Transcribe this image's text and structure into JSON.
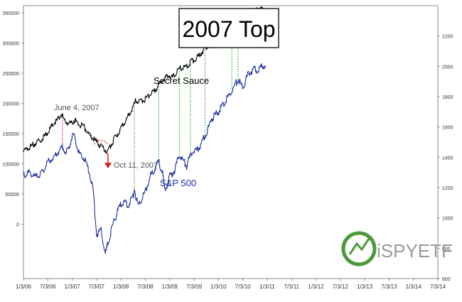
{
  "chart_data": {
    "type": "line",
    "title": "2007 Top",
    "x_tick_labels": [
      "1/3/06",
      "7/3/06",
      "1/3/07",
      "7/3/07",
      "1/3/08",
      "7/3/08",
      "1/3/09",
      "7/3/09",
      "1/3/10",
      "7/3/10",
      "1/3/11",
      "7/3/11",
      "1/3/12",
      "7/3/12",
      "1/3/13",
      "7/3/13",
      "1/3/14",
      "7/3/14"
    ],
    "left_axis": {
      "ylim": [
        -90000,
        362000
      ],
      "ticks": [
        0,
        50000,
        100000,
        150000,
        200000,
        250000,
        300000,
        350000
      ],
      "tick_labels": [
        "0",
        "50000",
        "100000",
        "150000",
        "200000",
        "250000",
        "300000",
        "350000"
      ]
    },
    "right_axis": {
      "ylim": [
        600,
        2400
      ],
      "ticks": [
        600,
        800,
        1000,
        1200,
        1400,
        1600,
        1800,
        2000,
        2200
      ],
      "tick_labels": [
        "600",
        "800",
        "1000",
        "1200",
        "1400",
        "1600",
        "1800",
        "2000",
        "2200"
      ]
    },
    "grid": false,
    "legend": "none",
    "series": [
      {
        "name": "Secret Sauce",
        "axis": "left",
        "color": "#000000",
        "points": [
          [
            0.0,
            118000
          ],
          [
            0.25,
            125000
          ],
          [
            0.5,
            132000
          ],
          [
            0.75,
            138000
          ],
          [
            1.0,
            150000
          ],
          [
            1.25,
            165000
          ],
          [
            1.4,
            170000
          ],
          [
            1.55,
            180000
          ],
          [
            1.7,
            168000
          ],
          [
            1.9,
            164000
          ],
          [
            2.1,
            170000
          ],
          [
            2.3,
            162000
          ],
          [
            2.5,
            158000
          ],
          [
            2.7,
            145000
          ],
          [
            2.9,
            138000
          ],
          [
            3.1,
            130000
          ],
          [
            3.3,
            122000
          ],
          [
            3.45,
            118000
          ],
          [
            3.6,
            130000
          ],
          [
            3.9,
            150000
          ],
          [
            4.2,
            170000
          ],
          [
            4.5,
            190000
          ],
          [
            4.6,
            202000
          ],
          [
            4.8,
            200000
          ],
          [
            5.0,
            205000
          ],
          [
            5.2,
            213000
          ],
          [
            5.4,
            220000
          ],
          [
            5.6,
            231000
          ],
          [
            5.8,
            240000
          ],
          [
            6.0,
            244000
          ],
          [
            6.1,
            240000
          ],
          [
            6.3,
            250000
          ],
          [
            6.5,
            258000
          ],
          [
            6.7,
            258000
          ],
          [
            6.9,
            268000
          ],
          [
            7.1,
            272000
          ],
          [
            7.3,
            282000
          ],
          [
            7.6,
            295000
          ],
          [
            7.9,
            305000
          ],
          [
            8.2,
            318000
          ],
          [
            8.5,
            318000
          ],
          [
            8.8,
            328000
          ],
          [
            9.1,
            337000
          ],
          [
            9.4,
            348000
          ],
          [
            9.7,
            355000
          ],
          [
            9.9,
            350000
          ]
        ]
      },
      {
        "name": "S&P 500",
        "axis": "right",
        "color": "#1c2fa0",
        "points": [
          [
            0.0,
            1268
          ],
          [
            0.25,
            1290
          ],
          [
            0.5,
            1255
          ],
          [
            0.75,
            1285
          ],
          [
            1.0,
            1360
          ],
          [
            1.25,
            1390
          ],
          [
            1.4,
            1420
          ],
          [
            1.6,
            1460
          ],
          [
            1.75,
            1410
          ],
          [
            1.9,
            1470
          ],
          [
            2.0,
            1530
          ],
          [
            2.1,
            1520
          ],
          [
            2.3,
            1400
          ],
          [
            2.5,
            1380
          ],
          [
            2.7,
            1290
          ],
          [
            2.85,
            1190
          ],
          [
            3.0,
            880
          ],
          [
            3.2,
            910
          ],
          [
            3.35,
            740
          ],
          [
            3.5,
            840
          ],
          [
            3.7,
            960
          ],
          [
            3.9,
            1050
          ],
          [
            4.1,
            1100
          ],
          [
            4.3,
            1070
          ],
          [
            4.5,
            1130
          ],
          [
            4.55,
            1180
          ],
          [
            4.7,
            1060
          ],
          [
            4.85,
            1120
          ],
          [
            5.0,
            1160
          ],
          [
            5.2,
            1260
          ],
          [
            5.4,
            1320
          ],
          [
            5.55,
            1360
          ],
          [
            5.7,
            1290
          ],
          [
            5.8,
            1160
          ],
          [
            6.0,
            1260
          ],
          [
            6.2,
            1300
          ],
          [
            6.4,
            1410
          ],
          [
            6.5,
            1380
          ],
          [
            6.7,
            1330
          ],
          [
            6.9,
            1420
          ],
          [
            7.1,
            1430
          ],
          [
            7.3,
            1480
          ],
          [
            7.55,
            1560
          ],
          [
            7.7,
            1640
          ],
          [
            8.0,
            1690
          ],
          [
            8.3,
            1760
          ],
          [
            8.6,
            1840
          ],
          [
            8.8,
            1900
          ],
          [
            9.0,
            1850
          ],
          [
            9.2,
            1930
          ],
          [
            9.45,
            1970
          ],
          [
            9.6,
            1960
          ],
          [
            9.8,
            1990
          ],
          [
            9.95,
            1980
          ]
        ]
      }
    ],
    "vertical_markers": [
      {
        "x": 1.6,
        "color": "#d62728",
        "style": "dotted"
      },
      {
        "x": 4.55,
        "color": "#2ca02c",
        "style": "dotted"
      },
      {
        "x": 5.55,
        "color": "#2ca02c",
        "style": "dotted"
      },
      {
        "x": 6.4,
        "color": "#2ca02c",
        "style": "dotted"
      },
      {
        "x": 6.85,
        "color": "#2ca02c",
        "style": "dotted"
      },
      {
        "x": 7.45,
        "color": "#2ca02c",
        "style": "dotted"
      },
      {
        "x": 8.55,
        "color": "#2ca02c",
        "style": "dotted"
      },
      {
        "x": 8.8,
        "color": "#2ca02c",
        "style": "dotted"
      }
    ],
    "annotations": [
      {
        "text": "June 4, 2007",
        "color": "#555555"
      },
      {
        "text": "Oct 11, 2007",
        "color": "#555555"
      },
      {
        "text": "Secret Sauce",
        "color": "#000000"
      },
      {
        "text": "S&P 500",
        "color": "#1c2fa0"
      }
    ],
    "logo_text": "iSPYETF"
  }
}
